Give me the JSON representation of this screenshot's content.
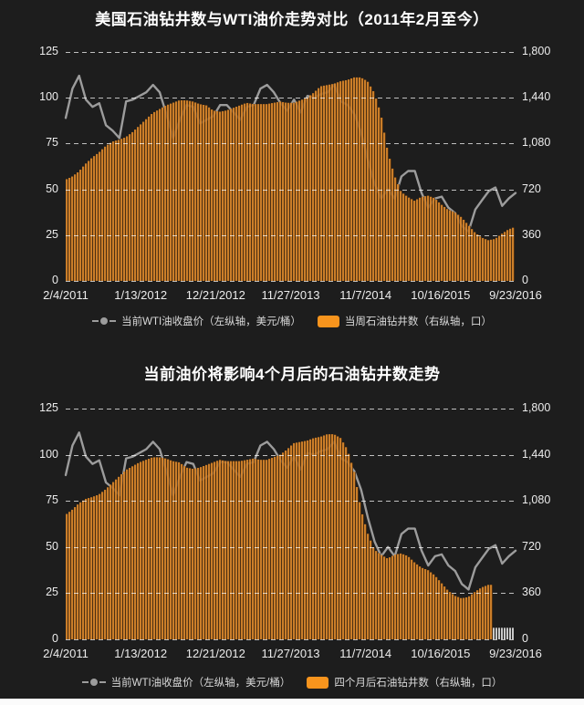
{
  "page": {
    "background": "#1d1d1d",
    "bottom_strip_color": "#fbfbfb"
  },
  "colors": {
    "bar_fill": "#ef9530",
    "bar_gap": "#5a350f",
    "bar_opacity": 0.78,
    "line": "#9c9c9c",
    "grid": "rgba(255,255,255,0.72)",
    "axis_text": "#ececec",
    "title_text": "#ffffff",
    "legend_text": "#d9d9d9",
    "legend_swatch": "#f7941d",
    "placeholder_bar": "#c8c8c8"
  },
  "axes": {
    "left_ticks": [
      "125",
      "100",
      "75",
      "50",
      "25",
      "0"
    ],
    "right_ticks": [
      "1,800",
      "1,440",
      "1,080",
      "720",
      "360",
      "0"
    ],
    "x_ticks": [
      "2/4/2011",
      "1/13/2012",
      "12/21/2012",
      "11/27/2013",
      "11/7/2014",
      "10/16/2015",
      "9/23/2016"
    ],
    "left_range": [
      0,
      125
    ],
    "right_range": [
      0,
      1800
    ]
  },
  "chart_data": [
    {
      "type": "bar",
      "subtype": "combo-bar-line",
      "title": "美国石油钻井数与WTI油价走势对比（2011年2月至今）",
      "x_unit": "month",
      "x_start": "2011-02",
      "x_end": "2016-09",
      "x_tick_labels": [
        "2/4/2011",
        "1/13/2012",
        "12/21/2012",
        "11/27/2013",
        "11/7/2014",
        "10/16/2015",
        "9/23/2016"
      ],
      "left_ylim": [
        0,
        125
      ],
      "right_ylim": [
        0,
        1800
      ],
      "grid": "horizontal-dashed",
      "legend_position": "bottom",
      "series": [
        {
          "name": "当前WTI油收盘价（左纵轴，美元/桶）",
          "type": "line",
          "axis": "left",
          "color": "#9c9c9c",
          "values": [
            89,
            105,
            112,
            99,
            95,
            97,
            85,
            82,
            78,
            98,
            99,
            101,
            103,
            107,
            103,
            91,
            78,
            88,
            96,
            95,
            86,
            88,
            90,
            96,
            96,
            92,
            88,
            95,
            96,
            105,
            107,
            103,
            97,
            93,
            99,
            92,
            101,
            100,
            102,
            103,
            107,
            98,
            96,
            91,
            81,
            66,
            53,
            45,
            50,
            45,
            57,
            60,
            60,
            48,
            40,
            45,
            46,
            40,
            37,
            30,
            27,
            39,
            44,
            49,
            51,
            41,
            45,
            48
          ]
        },
        {
          "name": "当周石油钻井数（右纵轴，口）",
          "type": "bar",
          "axis": "right",
          "color": "#c0762a",
          "values": [
            795,
            820,
            860,
            920,
            970,
            1010,
            1060,
            1095,
            1110,
            1130,
            1170,
            1220,
            1270,
            1320,
            1350,
            1380,
            1400,
            1420,
            1420,
            1410,
            1390,
            1380,
            1340,
            1330,
            1340,
            1360,
            1380,
            1400,
            1390,
            1390,
            1390,
            1400,
            1410,
            1400,
            1400,
            1420,
            1440,
            1480,
            1530,
            1540,
            1550,
            1570,
            1580,
            1600,
            1600,
            1570,
            1480,
            1310,
            1020,
            830,
            700,
            660,
            630,
            660,
            670,
            650,
            600,
            560,
            540,
            500,
            440,
            380,
            340,
            320,
            330,
            370,
            405,
            425
          ]
        }
      ]
    },
    {
      "type": "bar",
      "subtype": "combo-bar-line",
      "title": "当前油价将影响4个月后的石油钻井数走势",
      "x_unit": "month",
      "x_start": "2011-02",
      "x_end": "2016-09",
      "x_tick_labels": [
        "2/4/2011",
        "1/13/2012",
        "12/21/2012",
        "11/27/2013",
        "11/7/2014",
        "10/16/2015",
        "9/23/2016"
      ],
      "left_ylim": [
        0,
        125
      ],
      "right_ylim": [
        0,
        1800
      ],
      "grid": "horizontal-dashed",
      "legend_position": "bottom",
      "series": [
        {
          "name": "当前WTI油收盘价（左纵轴，美元/桶）",
          "type": "line",
          "axis": "left",
          "color": "#9c9c9c",
          "values": [
            89,
            105,
            112,
            99,
            95,
            97,
            85,
            82,
            78,
            98,
            99,
            101,
            103,
            107,
            103,
            91,
            78,
            88,
            96,
            95,
            86,
            88,
            90,
            96,
            96,
            92,
            88,
            95,
            96,
            105,
            107,
            103,
            97,
            93,
            99,
            92,
            101,
            100,
            102,
            103,
            107,
            98,
            96,
            91,
            81,
            66,
            53,
            45,
            50,
            45,
            57,
            60,
            60,
            48,
            40,
            45,
            46,
            40,
            37,
            30,
            27,
            39,
            44,
            49,
            51,
            41,
            45,
            48
          ]
        },
        {
          "name": "四个月后石油钻井数（右纵轴，口）",
          "type": "bar",
          "axis": "right",
          "color": "#c0762a",
          "shift_months": 4,
          "values": [
            970,
            1010,
            1060,
            1095,
            1110,
            1130,
            1170,
            1220,
            1270,
            1320,
            1350,
            1380,
            1400,
            1420,
            1420,
            1410,
            1390,
            1380,
            1340,
            1330,
            1340,
            1360,
            1380,
            1400,
            1390,
            1390,
            1390,
            1400,
            1410,
            1400,
            1400,
            1420,
            1440,
            1480,
            1530,
            1540,
            1550,
            1570,
            1580,
            1600,
            1600,
            1570,
            1480,
            1310,
            1020,
            830,
            700,
            660,
            630,
            660,
            670,
            650,
            600,
            560,
            540,
            500,
            440,
            380,
            340,
            320,
            330,
            370,
            405,
            425
          ]
        }
      ],
      "placeholder_bars": {
        "count_months": 4,
        "value": 90,
        "color": "#c8c8c8"
      }
    }
  ]
}
